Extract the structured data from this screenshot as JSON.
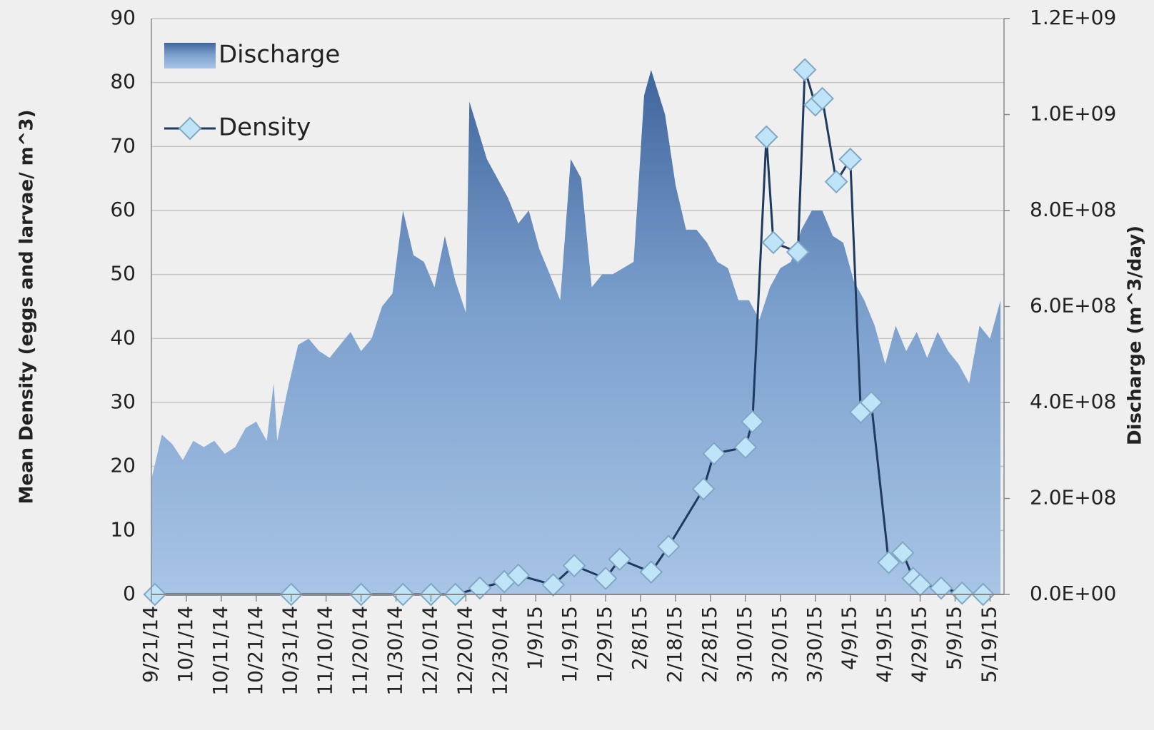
{
  "chart_data": {
    "type": "area",
    "y_label": "Mean Density (eggs and larvae/ m^3)",
    "y2_label": "Discharge (m^3/day)",
    "xlim": [
      "9/21/14",
      "5/23/15"
    ],
    "xticks": [
      "9/21/14",
      "10/1/14",
      "10/11/14",
      "10/21/14",
      "10/31/14",
      "11/10/14",
      "11/20/14",
      "11/30/14",
      "12/10/14",
      "12/20/14",
      "12/30/14",
      "1/9/15",
      "1/19/15",
      "1/29/15",
      "2/8/15",
      "2/18/15",
      "2/28/15",
      "3/10/15",
      "3/20/15",
      "3/30/15",
      "4/9/15",
      "4/19/15",
      "4/29/15",
      "5/9/15",
      "5/19/15"
    ],
    "ylim": [
      0,
      90
    ],
    "yticks": [
      0,
      10,
      20,
      30,
      40,
      50,
      60,
      70,
      80,
      90
    ],
    "y2lim": [
      0,
      1200000000
    ],
    "y2ticks": [
      {
        "value": 0,
        "label": "0.0E+00"
      },
      {
        "value": 200000000,
        "label": "2.0E+08"
      },
      {
        "value": 400000000,
        "label": "4.0E+08"
      },
      {
        "value": 600000000,
        "label": "6.0E+08"
      },
      {
        "value": 800000000,
        "label": "8.0E+08"
      },
      {
        "value": 1000000000,
        "label": "1.0E+09"
      },
      {
        "value": 1200000000,
        "label": "1.2E+09"
      }
    ],
    "grid": true,
    "legend": "upper left",
    "series": [
      {
        "name": "Discharge",
        "type": "area",
        "axis": "y2",
        "color": "#4a6fa5",
        "x": [
          "9/21/14",
          "9/24/14",
          "9/27/14",
          "9/30/14",
          "10/3/14",
          "10/6/14",
          "10/9/14",
          "10/12/14",
          "10/15/14",
          "10/18/14",
          "10/21/14",
          "10/24/14",
          "10/26/14",
          "10/27/14",
          "10/30/14",
          "11/2/14",
          "11/5/14",
          "11/8/14",
          "11/11/14",
          "11/14/14",
          "11/17/14",
          "11/20/14",
          "11/23/14",
          "11/26/14",
          "11/29/14",
          "12/2/14",
          "12/5/14",
          "12/8/14",
          "12/11/14",
          "12/14/14",
          "12/17/14",
          "12/20/14",
          "12/21/14",
          "12/26/14",
          "12/29/14",
          "1/1/15",
          "1/4/15",
          "1/7/15",
          "1/10/15",
          "1/13/15",
          "1/16/15",
          "1/19/15",
          "1/22/15",
          "1/25/15",
          "1/28/15",
          "1/31/15",
          "2/3/15",
          "2/6/15",
          "2/9/15",
          "2/11/15",
          "2/15/15",
          "2/18/15",
          "2/21/15",
          "2/24/15",
          "2/27/15",
          "3/2/15",
          "3/5/15",
          "3/8/15",
          "3/11/15",
          "3/14/15",
          "3/17/15",
          "3/20/15",
          "3/23/15",
          "3/26/15",
          "3/29/15",
          "4/1/15",
          "4/4/15",
          "4/7/15",
          "4/10/15",
          "4/13/15",
          "4/16/15",
          "4/19/15",
          "4/22/15",
          "4/25/15",
          "4/28/15",
          "5/1/15",
          "5/4/15",
          "5/7/15",
          "5/10/15",
          "5/13/15",
          "5/16/15",
          "5/19/15",
          "5/22/15"
        ],
        "values": [
          240000000,
          333000000,
          313000000,
          280000000,
          320000000,
          307000000,
          320000000,
          293000000,
          307000000,
          347000000,
          360000000,
          320000000,
          440000000,
          320000000,
          427000000,
          520000000,
          533000000,
          507000000,
          493000000,
          520000000,
          547000000,
          507000000,
          533000000,
          600000000,
          627000000,
          800000000,
          707000000,
          693000000,
          640000000,
          747000000,
          653000000,
          587000000,
          1027000000,
          907000000,
          867000000,
          827000000,
          773000000,
          800000000,
          720000000,
          667000000,
          613000000,
          907000000,
          867000000,
          640000000,
          667000000,
          667000000,
          680000000,
          693000000,
          1040000000,
          1093000000,
          1000000000,
          853000000,
          760000000,
          760000000,
          733000000,
          693000000,
          680000000,
          613000000,
          613000000,
          573000000,
          640000000,
          680000000,
          693000000,
          760000000,
          800000000,
          800000000,
          747000000,
          733000000,
          653000000,
          613000000,
          560000000,
          480000000,
          560000000,
          507000000,
          547000000,
          493000000,
          547000000,
          507000000,
          480000000,
          440000000,
          560000000,
          533000000,
          613000000
        ]
      },
      {
        "name": "Density",
        "type": "line",
        "axis": "y",
        "color": "#1f3a5f",
        "marker_color": "#bfe4f7",
        "x": [
          "9/22/14",
          "10/31/14",
          "11/20/14",
          "12/2/14",
          "12/10/14",
          "12/17/14",
          "12/24/14",
          "12/31/14",
          "1/4/15",
          "1/14/15",
          "1/20/15",
          "1/29/15",
          "2/2/15",
          "2/11/15",
          "2/16/15",
          "2/26/15",
          "3/1/15",
          "3/10/15",
          "3/12/15",
          "3/16/15",
          "3/18/15",
          "3/25/15",
          "3/27/15",
          "3/30/15",
          "4/1/15",
          "4/5/15",
          "4/9/15",
          "4/12/15",
          "4/15/15",
          "4/20/15",
          "4/24/15",
          "4/27/15",
          "4/29/15",
          "5/5/15",
          "5/11/15",
          "5/17/15"
        ],
        "values": [
          0,
          0,
          0,
          0,
          0,
          0,
          1,
          2,
          3,
          1.5,
          4.5,
          2.5,
          5.5,
          3.5,
          7.5,
          16.5,
          22,
          23,
          27,
          71.5,
          55,
          53.5,
          82,
          76.5,
          77.5,
          64.5,
          68,
          28.5,
          30,
          5,
          6.5,
          2.5,
          1.5,
          1,
          0.2,
          0
        ]
      }
    ]
  }
}
